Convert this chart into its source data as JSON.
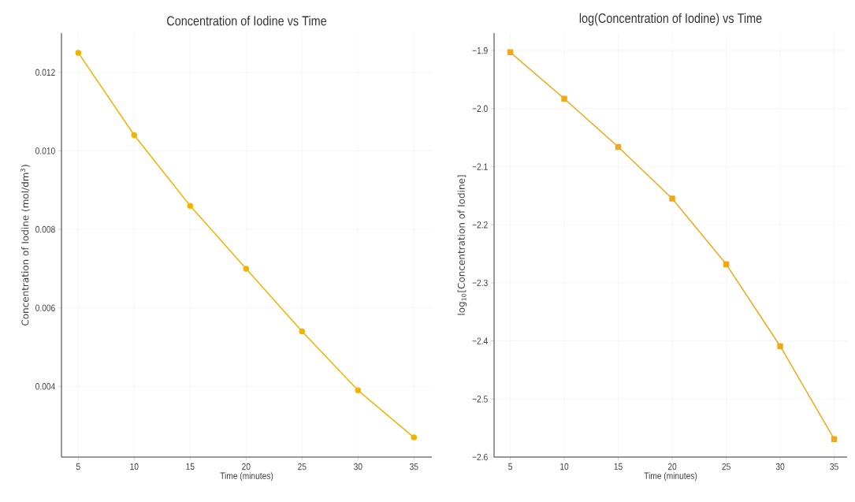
{
  "chart_data": [
    {
      "type": "line",
      "title": "Concentration of Iodine vs Time",
      "xlabel": "Time (minutes)",
      "ylabel": "Concentration of Iodine (mol/dm$^{3}$)",
      "x": [
        5,
        10,
        15,
        20,
        25,
        30,
        35
      ],
      "values": [
        0.0125,
        0.0104,
        0.0086,
        0.007,
        0.0054,
        0.0039,
        0.0027
      ],
      "color": "#f0b400",
      "marker": "circle",
      "line_style": "solid",
      "grid": true,
      "xlim": [
        3.5,
        36.6
      ],
      "ylim": [
        0.0022,
        0.013
      ],
      "xticks": [
        5,
        10,
        15,
        20,
        25,
        30,
        35
      ],
      "yticks": [
        {
          "value": 0.004,
          "label": "0.004"
        },
        {
          "value": 0.006,
          "label": "0.006"
        },
        {
          "value": 0.008,
          "label": "0.008"
        },
        {
          "value": 0.01,
          "label": "0.010"
        },
        {
          "value": 0.012,
          "label": "0.012"
        }
      ]
    },
    {
      "type": "line",
      "title": "log(Concentration of Iodine) vs Time",
      "xlabel": "Time (minutes)",
      "ylabel": "log$_{10}$[Concentration of Iodine]",
      "x": [
        5,
        10,
        15,
        20,
        25,
        30,
        35
      ],
      "values": [
        -1.903,
        -1.983,
        -2.066,
        -2.155,
        -2.268,
        -2.409,
        -2.569
      ],
      "color": "#f0a818",
      "marker": "square",
      "line_style": "solid",
      "grid": true,
      "xlim": [
        3.5,
        36.2
      ],
      "ylim": [
        -2.6,
        -1.87
      ],
      "xticks": [
        5,
        10,
        15,
        20,
        25,
        30,
        35
      ],
      "yticks": [
        {
          "value": -2.6,
          "label": "−2.6"
        },
        {
          "value": -2.5,
          "label": "−2.5"
        },
        {
          "value": -2.4,
          "label": "−2.4"
        },
        {
          "value": -2.3,
          "label": "−2.3"
        },
        {
          "value": -2.2,
          "label": "−2.2"
        },
        {
          "value": -2.1,
          "label": "−2.1"
        },
        {
          "value": -2.0,
          "label": "−2.0"
        },
        {
          "value": -1.9,
          "label": "−1.9"
        }
      ]
    }
  ]
}
